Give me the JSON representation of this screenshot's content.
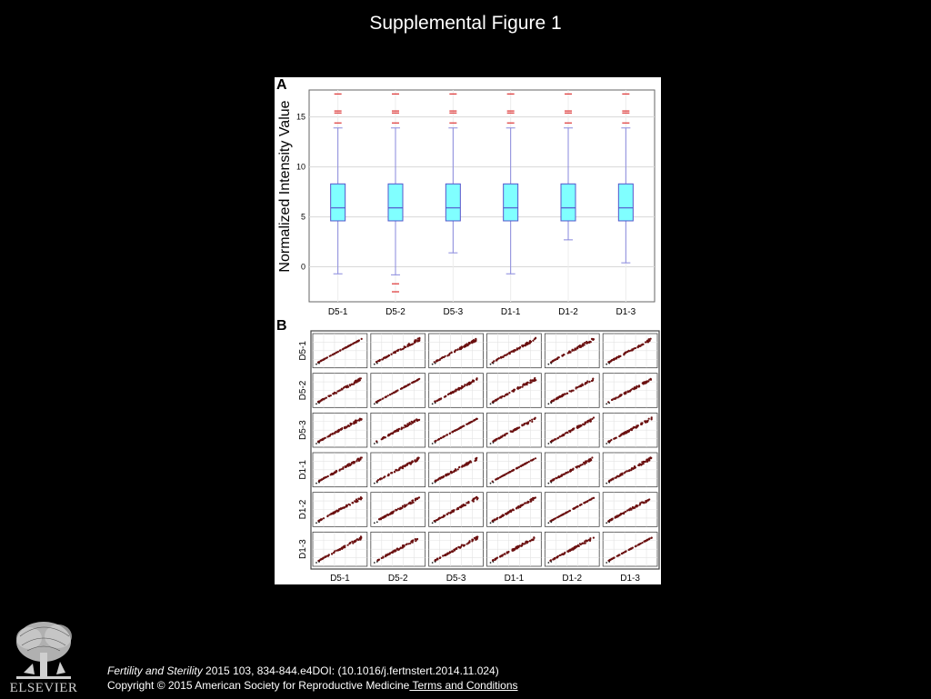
{
  "slide": {
    "title": "Supplemental Figure 1"
  },
  "citation": {
    "journal": "Fertility and Sterility",
    "details": " 2015 103, 834-844.e4DOI: (10.1016/j.fertnstert.2014.11.024)",
    "copyright": "Copyright © 2015 American Society for Reproductive Medicine",
    "terms_link": " Terms and Conditions"
  },
  "logo": {
    "text": "ELSEVIER"
  },
  "colors": {
    "box_fill": "#80ffff",
    "box_stroke": "#5555cc",
    "whisker": "#8888dd",
    "outlier": "#dd3333",
    "scatter_point": "#6b1010",
    "background": "#000000"
  },
  "chart_data": [
    {
      "panel": "A",
      "type": "boxplot",
      "ylabel": "Normalized Intensity Value",
      "categories": [
        "D5-1",
        "D5-2",
        "D5-3",
        "D1-1",
        "D1-2",
        "D1-3"
      ],
      "yticks": [
        0,
        5,
        10,
        15
      ],
      "ylim": [
        -3.5,
        17.7
      ],
      "grid": true,
      "boxes": [
        {
          "name": "D5-1",
          "whisker_low": -0.7,
          "q1": 4.6,
          "median": 5.9,
          "q3": 8.3,
          "whisker_high": 13.9,
          "outliers": [
            14.4,
            15.4,
            15.6,
            17.3
          ]
        },
        {
          "name": "D5-2",
          "whisker_low": -0.8,
          "q1": 4.6,
          "median": 5.9,
          "q3": 8.3,
          "whisker_high": 13.9,
          "outliers": [
            -1.7,
            -2.5,
            14.4,
            15.4,
            15.6,
            17.3
          ]
        },
        {
          "name": "D5-3",
          "whisker_low": 1.4,
          "q1": 4.6,
          "median": 5.9,
          "q3": 8.3,
          "whisker_high": 13.9,
          "outliers": [
            14.4,
            15.4,
            15.6,
            17.3
          ]
        },
        {
          "name": "D1-1",
          "whisker_low": -0.7,
          "q1": 4.6,
          "median": 5.9,
          "q3": 8.3,
          "whisker_high": 13.9,
          "outliers": [
            14.4,
            15.4,
            15.6,
            17.3
          ]
        },
        {
          "name": "D1-2",
          "whisker_low": 2.7,
          "q1": 4.6,
          "median": 5.9,
          "q3": 8.3,
          "whisker_high": 13.9,
          "outliers": [
            14.4,
            15.4,
            15.6,
            17.3
          ]
        },
        {
          "name": "D1-3",
          "whisker_low": 0.4,
          "q1": 4.6,
          "median": 5.9,
          "q3": 8.3,
          "whisker_high": 13.9,
          "outliers": [
            14.4,
            15.4,
            15.6,
            17.3
          ]
        }
      ]
    },
    {
      "panel": "B",
      "type": "scatter-matrix",
      "row_labels": [
        "D5-1",
        "D5-2",
        "D5-3",
        "D1-1",
        "D1-2",
        "D1-3"
      ],
      "col_labels": [
        "D5-1",
        "D5-2",
        "D5-3",
        "D1-1",
        "D1-2",
        "D1-3"
      ],
      "grid": true
    }
  ]
}
